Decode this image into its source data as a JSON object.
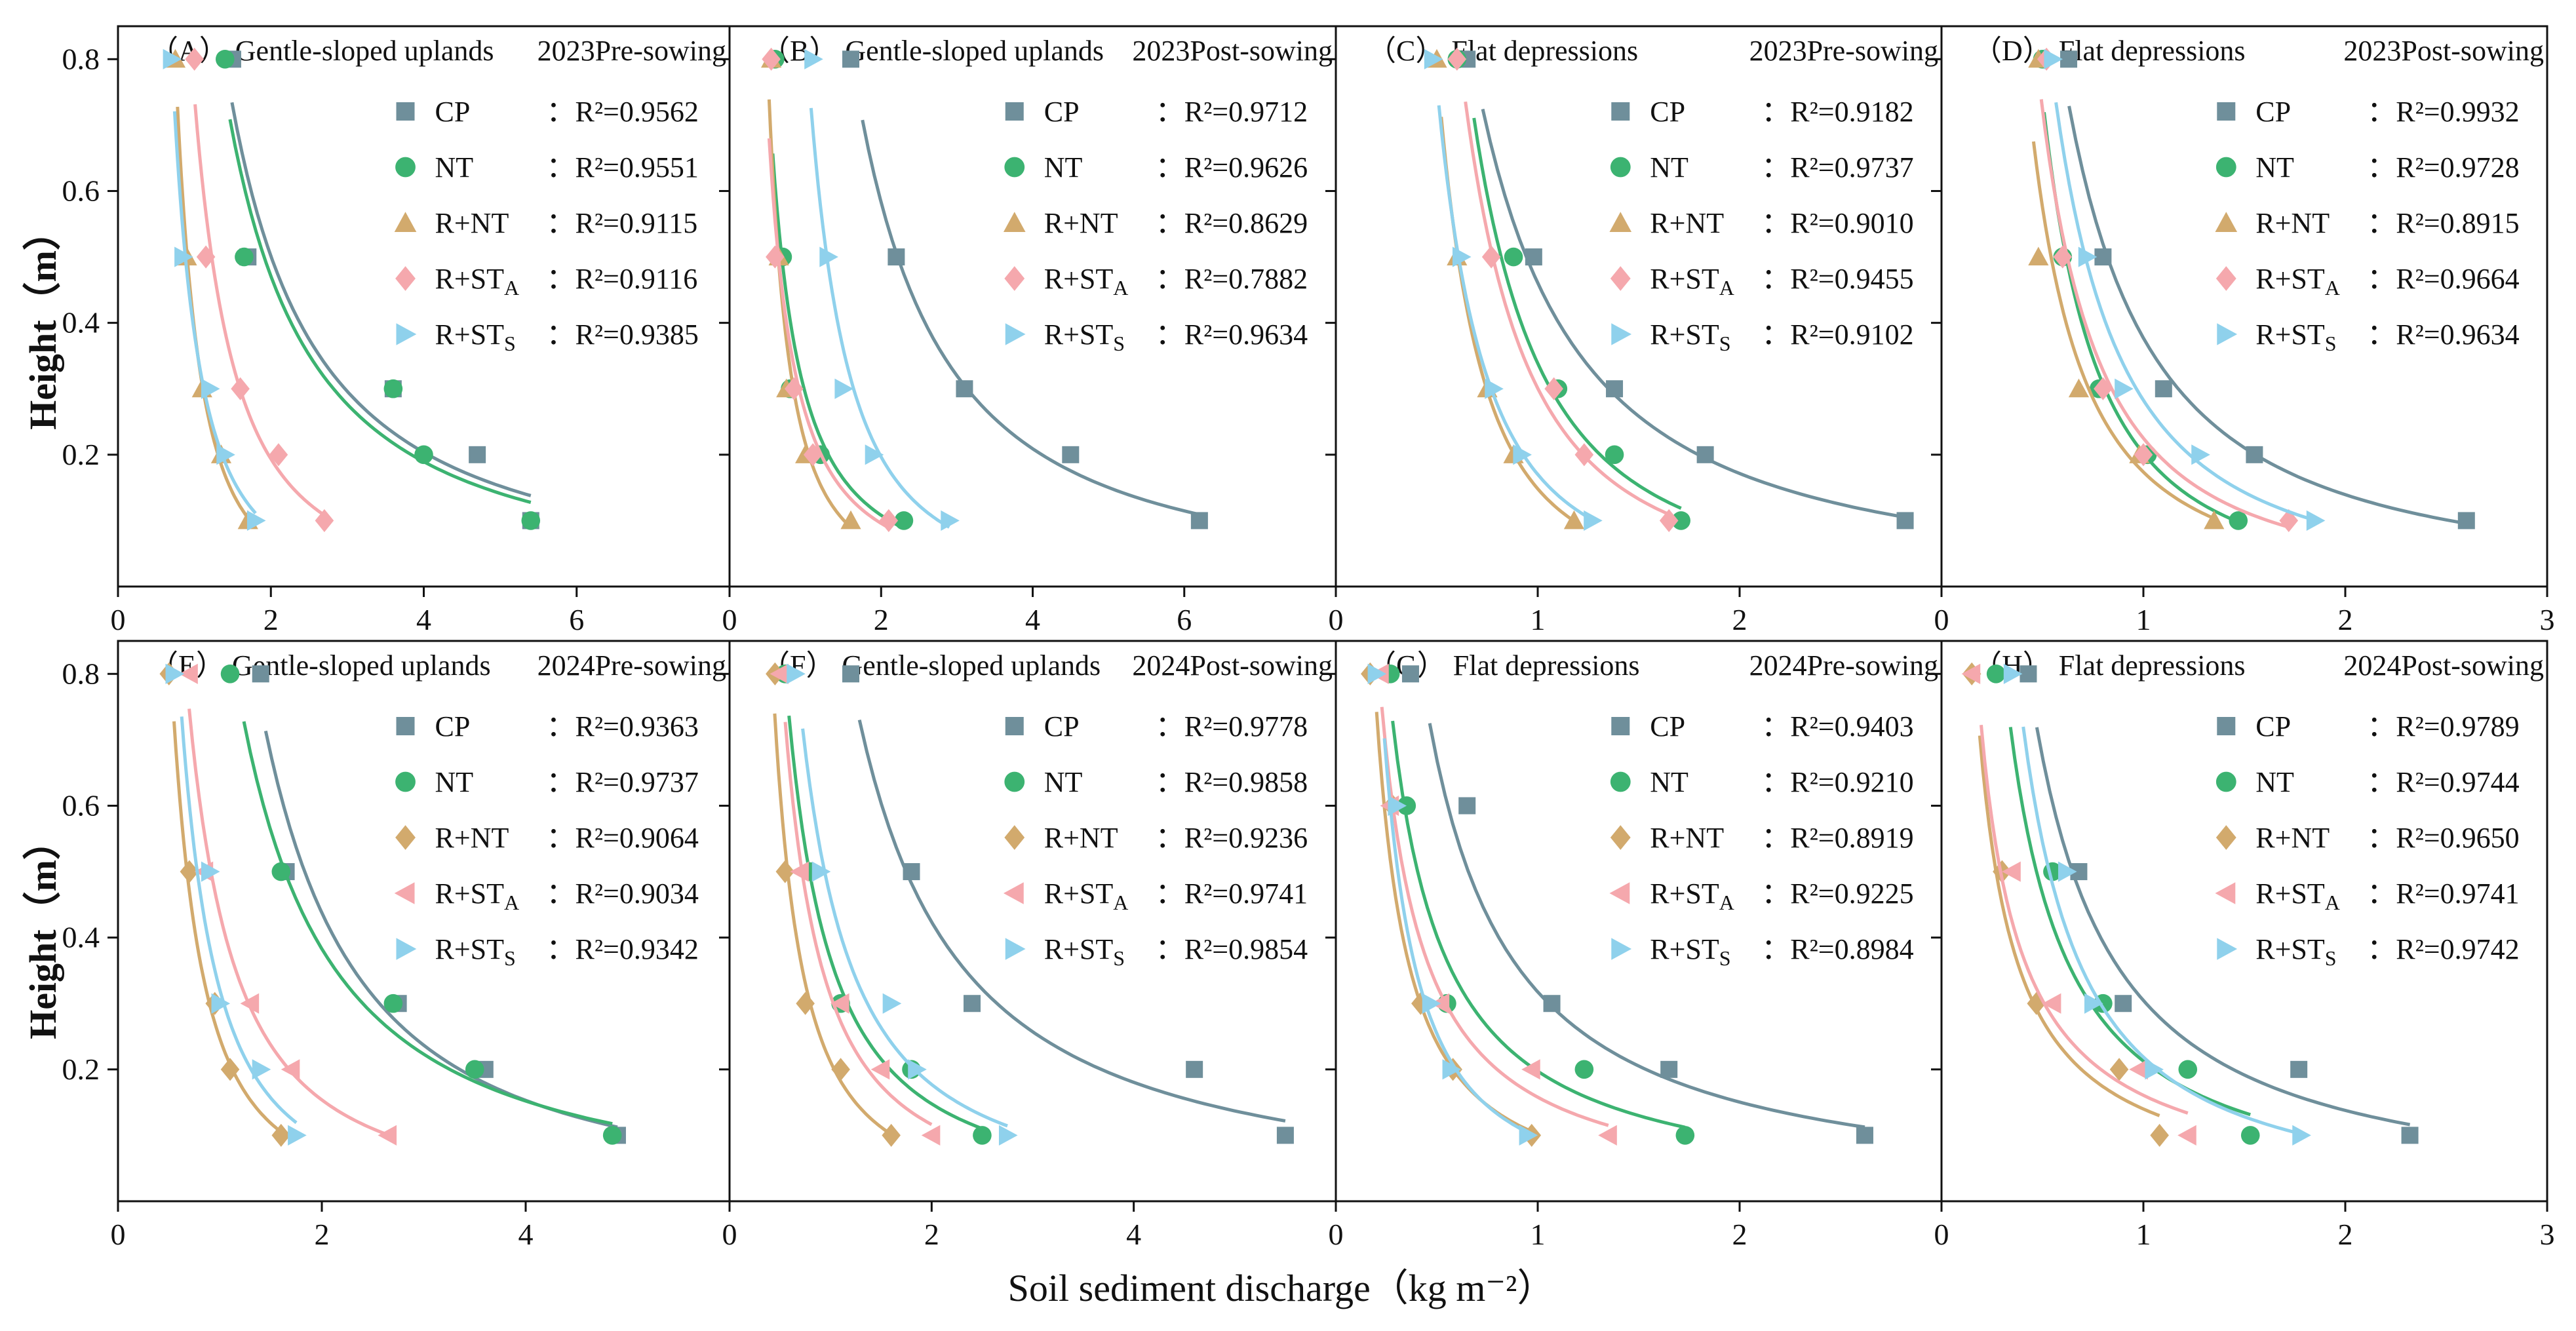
{
  "figure": {
    "ylabel": "Height（m）",
    "xlabel": "Soil sediment discharge（kg m⁻²）"
  },
  "colors": {
    "CP": "#6f8f9b",
    "NT": "#3cb371",
    "R+NT": "#d2aa6d",
    "R+STA": "#f5a8ad",
    "R+STS": "#8fd1ec",
    "highlight": "#00e5ff"
  },
  "chart_data": [
    {
      "type": "scatter",
      "id": "A",
      "panel_label": "（A）",
      "site": "Gentle-sloped uplands",
      "period": "2023Pre-sowing",
      "xlim": [
        0,
        8
      ],
      "ylim": [
        0,
        0.85
      ],
      "xticks": [
        "0",
        "2",
        "4",
        "6",
        ""
      ],
      "yticks": [
        "0.2",
        "0.4",
        "0.6",
        "0.8"
      ],
      "series": [
        {
          "key": "CP",
          "name": "CP",
          "marker": "square",
          "r2": "R²=0.9562",
          "x": [
            1.5,
            1.7,
            3.6,
            4.7,
            5.4
          ],
          "y": [
            0.8,
            0.5,
            0.3,
            0.2,
            0.1
          ]
        },
        {
          "key": "NT",
          "name": "NT",
          "marker": "circle",
          "r2": "R²=0.9551",
          "x": [
            1.4,
            1.65,
            3.6,
            4.0,
            5.4
          ],
          "y": [
            0.8,
            0.5,
            0.3,
            0.2,
            0.1
          ]
        },
        {
          "key": "R+NT",
          "name": "R+NT",
          "marker": "triangle-up",
          "r2": "R²=0.9115",
          "x": [
            0.75,
            0.9,
            1.1,
            1.35,
            1.7
          ],
          "y": [
            0.8,
            0.5,
            0.3,
            0.2,
            0.1
          ]
        },
        {
          "key": "R+STA",
          "name": "R+STA",
          "sub": "A",
          "marker": "diamond",
          "r2": "R²=0.9116",
          "x": [
            1.0,
            1.15,
            1.6,
            2.1,
            2.7
          ],
          "y": [
            0.8,
            0.5,
            0.3,
            0.2,
            0.1
          ]
        },
        {
          "key": "R+STS",
          "name": "R+STS",
          "sub": "S",
          "marker": "triangle-right",
          "r2": "R²=0.9385",
          "x": [
            0.7,
            0.85,
            1.2,
            1.4,
            1.8
          ],
          "y": [
            0.8,
            0.5,
            0.3,
            0.2,
            0.1
          ]
        }
      ]
    },
    {
      "type": "scatter",
      "id": "B",
      "panel_label": "（B）",
      "site": "Gentle-sloped uplands",
      "period": "2023Post-sowing",
      "xlim": [
        0,
        8
      ],
      "ylim": [
        0,
        0.85
      ],
      "xticks": [
        "0",
        "2",
        "4",
        "6",
        ""
      ],
      "yticks": [
        "0.2",
        "0.4",
        "0.6",
        "0.8"
      ],
      "series": [
        {
          "key": "CP",
          "name": "CP",
          "marker": "square",
          "r2": "R²=0.9712",
          "x": [
            1.6,
            2.2,
            3.1,
            4.5,
            6.2
          ],
          "y": [
            0.8,
            0.5,
            0.3,
            0.2,
            0.1
          ]
        },
        {
          "key": "NT",
          "name": "NT",
          "marker": "circle",
          "r2": "R²=0.9626",
          "x": [
            0.6,
            0.7,
            0.8,
            1.2,
            2.3
          ],
          "y": [
            0.8,
            0.5,
            0.3,
            0.2,
            0.1
          ]
        },
        {
          "key": "R+NT",
          "name": "R+NT",
          "marker": "triangle-up",
          "r2": "R²=0.8629",
          "x": [
            0.55,
            0.65,
            0.75,
            1.0,
            1.6
          ],
          "y": [
            0.8,
            0.5,
            0.3,
            0.2,
            0.1
          ]
        },
        {
          "key": "R+STA",
          "name": "R+STA",
          "sub": "A",
          "marker": "diamond",
          "r2": "R²=0.7882",
          "x": [
            0.55,
            0.6,
            0.85,
            1.1,
            2.1
          ],
          "y": [
            0.8,
            0.5,
            0.3,
            0.2,
            0.1
          ]
        },
        {
          "key": "R+STS",
          "name": "R+STS",
          "sub": "S",
          "marker": "triangle-right",
          "r2": "R²=0.9634",
          "x": [
            1.1,
            1.3,
            1.5,
            1.9,
            2.9
          ],
          "y": [
            0.8,
            0.5,
            0.3,
            0.2,
            0.1
          ]
        }
      ]
    },
    {
      "type": "scatter",
      "id": "C",
      "panel_label": "（C）",
      "site": "Flat depressions",
      "period": "2023Pre-sowing",
      "xlim": [
        0,
        3
      ],
      "ylim": [
        0,
        0.85
      ],
      "xticks": [
        "0",
        "1",
        "2",
        ""
      ],
      "yticks": [
        "0.2",
        "0.4",
        "0.6",
        "0.8"
      ],
      "series": [
        {
          "key": "CP",
          "name": "CP",
          "marker": "square",
          "r2": "R²=0.9182",
          "x": [
            0.65,
            0.98,
            1.38,
            1.83,
            2.82
          ],
          "y": [
            0.8,
            0.5,
            0.3,
            0.2,
            0.1
          ]
        },
        {
          "key": "NT",
          "name": "NT",
          "marker": "circle",
          "r2": "R²=0.9737",
          "x": [
            0.6,
            0.88,
            1.1,
            1.38,
            1.71
          ],
          "y": [
            0.8,
            0.5,
            0.3,
            0.2,
            0.1
          ]
        },
        {
          "key": "R+NT",
          "name": "R+NT",
          "marker": "triangle-up",
          "r2": "R²=0.9010",
          "x": [
            0.5,
            0.6,
            0.75,
            0.88,
            1.18
          ],
          "y": [
            0.8,
            0.5,
            0.3,
            0.2,
            0.1
          ]
        },
        {
          "key": "R+STA",
          "name": "R+STA",
          "sub": "A",
          "marker": "diamond",
          "r2": "R²=0.9455",
          "x": [
            0.6,
            0.77,
            1.08,
            1.23,
            1.65
          ],
          "y": [
            0.8,
            0.5,
            0.3,
            0.2,
            0.1
          ]
        },
        {
          "key": "R+STS",
          "name": "R+STS",
          "sub": "S",
          "marker": "triangle-right",
          "r2": "R²=0.9102",
          "x": [
            0.48,
            0.62,
            0.78,
            0.92,
            1.27
          ],
          "y": [
            0.8,
            0.5,
            0.3,
            0.2,
            0.1
          ]
        }
      ]
    },
    {
      "type": "scatter",
      "id": "D",
      "panel_label": "（D）",
      "site": "Flat depressions",
      "period": "2023Post-sowing",
      "xlim": [
        0,
        3
      ],
      "ylim": [
        0,
        0.85
      ],
      "xticks": [
        "0",
        "1",
        "2",
        "3"
      ],
      "yticks": [
        "0.2",
        "0.4",
        "0.6",
        "0.8"
      ],
      "series": [
        {
          "key": "CP",
          "name": "CP",
          "marker": "square",
          "r2": "R²=0.9932",
          "x": [
            0.63,
            0.8,
            1.1,
            1.55,
            2.6
          ],
          "y": [
            0.8,
            0.5,
            0.3,
            0.2,
            0.1
          ]
        },
        {
          "key": "NT",
          "name": "NT",
          "marker": "circle",
          "r2": "R²=0.9728",
          "x": [
            0.5,
            0.6,
            0.78,
            1.02,
            1.47
          ],
          "y": [
            0.8,
            0.5,
            0.3,
            0.2,
            0.1
          ]
        },
        {
          "key": "R+NT",
          "name": "R+NT",
          "marker": "triangle-up",
          "r2": "R²=0.8915",
          "x": [
            0.48,
            0.48,
            0.68,
            0.98,
            1.35
          ],
          "y": [
            0.8,
            0.5,
            0.3,
            0.2,
            0.1
          ]
        },
        {
          "key": "R+STA",
          "name": "R+STA",
          "sub": "A",
          "marker": "diamond",
          "r2": "R²=0.9664",
          "x": [
            0.52,
            0.6,
            0.8,
            1.0,
            1.72
          ],
          "y": [
            0.8,
            0.5,
            0.3,
            0.2,
            0.1
          ]
        },
        {
          "key": "R+STS",
          "name": "R+STS",
          "sub": "S",
          "marker": "triangle-right",
          "r2": "R²=0.9634",
          "x": [
            0.55,
            0.72,
            0.9,
            1.28,
            1.85
          ],
          "y": [
            0.8,
            0.5,
            0.3,
            0.2,
            0.1
          ]
        }
      ]
    },
    {
      "type": "scatter",
      "id": "E",
      "panel_label": "（E）",
      "site": "Gentle-sloped uplands",
      "period": "2024Pre-sowing",
      "xlim": [
        0,
        6
      ],
      "ylim": [
        0,
        0.85
      ],
      "xticks": [
        "0",
        "2",
        "4",
        ""
      ],
      "yticks": [
        "0.2",
        "0.4",
        "0.6",
        "0.8"
      ],
      "series": [
        {
          "key": "CP",
          "name": "CP",
          "marker": "square",
          "r2": "R²=0.9363",
          "x": [
            1.4,
            1.65,
            2.75,
            3.6,
            4.9
          ],
          "y": [
            0.8,
            0.5,
            0.3,
            0.2,
            0.1
          ]
        },
        {
          "key": "NT",
          "name": "NT",
          "marker": "circle",
          "r2": "R²=0.9737",
          "x": [
            1.1,
            1.6,
            2.7,
            3.5,
            4.85
          ],
          "y": [
            0.8,
            0.5,
            0.3,
            0.2,
            0.1
          ]
        },
        {
          "key": "R+NT",
          "name": "R+NT",
          "marker": "diamond",
          "r2": "R²=0.9064",
          "x": [
            0.5,
            0.7,
            0.95,
            1.1,
            1.6
          ],
          "y": [
            0.8,
            0.5,
            0.3,
            0.2,
            0.1
          ]
        },
        {
          "key": "R+STA",
          "name": "R+STA",
          "sub": "A",
          "marker": "triangle-left",
          "r2": "R²=0.9034",
          "x": [
            0.7,
            0.85,
            1.3,
            1.7,
            2.65
          ],
          "y": [
            0.8,
            0.5,
            0.3,
            0.2,
            0.1
          ]
        },
        {
          "key": "R+STS",
          "name": "R+STS",
          "sub": "S",
          "marker": "triangle-right",
          "r2": "R²=0.9342",
          "x": [
            0.55,
            0.9,
            1.0,
            1.4,
            1.75
          ],
          "y": [
            0.8,
            0.5,
            0.3,
            0.2,
            0.1
          ]
        }
      ]
    },
    {
      "type": "scatter",
      "id": "F",
      "panel_label": "（F）",
      "site": "Gentle-sloped uplands",
      "period": "2024Post-sowing",
      "xlim": [
        0,
        6
      ],
      "ylim": [
        0,
        0.85
      ],
      "xticks": [
        "0",
        "2",
        "4",
        ""
      ],
      "yticks": [
        "0.2",
        "0.4",
        "0.6",
        "0.8"
      ],
      "series": [
        {
          "key": "CP",
          "name": "CP",
          "marker": "square",
          "r2": "R²=0.9778",
          "x": [
            1.2,
            1.8,
            2.4,
            4.6,
            5.5
          ],
          "y": [
            0.8,
            0.5,
            0.3,
            0.2,
            0.1
          ]
        },
        {
          "key": "NT",
          "name": "NT",
          "marker": "circle",
          "r2": "R²=0.9858",
          "x": [
            0.55,
            0.8,
            1.1,
            1.8,
            2.5
          ],
          "y": [
            0.8,
            0.5,
            0.3,
            0.2,
            0.1
          ]
        },
        {
          "key": "R+NT",
          "name": "R+NT",
          "marker": "diamond",
          "r2": "R²=0.9236",
          "x": [
            0.45,
            0.55,
            0.75,
            1.1,
            1.6
          ],
          "y": [
            0.8,
            0.5,
            0.3,
            0.2,
            0.1
          ]
        },
        {
          "key": "R+STA",
          "name": "R+STA",
          "sub": "A",
          "marker": "triangle-left",
          "r2": "R²=0.9741",
          "x": [
            0.5,
            0.7,
            1.1,
            1.5,
            2.0
          ],
          "y": [
            0.8,
            0.5,
            0.3,
            0.2,
            0.1
          ]
        },
        {
          "key": "R+STS",
          "name": "R+STS",
          "sub": "S",
          "marker": "triangle-right",
          "r2": "R²=0.9854",
          "x": [
            0.65,
            0.9,
            1.6,
            1.85,
            2.75
          ],
          "y": [
            0.8,
            0.5,
            0.3,
            0.2,
            0.1
          ]
        }
      ]
    },
    {
      "type": "scatter",
      "id": "G",
      "panel_label": "（G）",
      "site": "Flat depressions",
      "period": "2024Pre-sowing",
      "xlim": [
        0,
        3
      ],
      "ylim": [
        0,
        0.85
      ],
      "xticks": [
        "0",
        "1",
        "2",
        ""
      ],
      "yticks": [
        "0.2",
        "0.4",
        "0.6",
        "0.8"
      ],
      "series": [
        {
          "key": "CP",
          "name": "CP",
          "marker": "square",
          "r2": "R²=0.9403",
          "x": [
            0.37,
            0.65,
            1.07,
            1.65,
            2.62
          ],
          "y": [
            0.8,
            0.6,
            0.3,
            0.2,
            0.1
          ]
        },
        {
          "key": "NT",
          "name": "NT",
          "marker": "circle",
          "r2": "R²=0.9210",
          "x": [
            0.27,
            0.35,
            0.55,
            1.23,
            1.73
          ],
          "y": [
            0.8,
            0.6,
            0.3,
            0.2,
            0.1
          ]
        },
        {
          "key": "R+NT",
          "name": "R+NT",
          "marker": "diamond",
          "r2": "R²=0.8919",
          "x": [
            0.17,
            0.28,
            0.42,
            0.58,
            0.97
          ],
          "y": [
            0.8,
            0.6,
            0.3,
            0.2,
            0.1
          ]
        },
        {
          "key": "R+STA",
          "name": "R+STA",
          "sub": "A",
          "marker": "triangle-left",
          "r2": "R²=0.9225",
          "x": [
            0.22,
            0.27,
            0.52,
            0.97,
            1.35
          ],
          "y": [
            0.8,
            0.6,
            0.3,
            0.2,
            0.1
          ]
        },
        {
          "key": "R+STS",
          "name": "R+STS",
          "sub": "S",
          "marker": "triangle-right",
          "r2": "R²=0.8984",
          "x": [
            0.2,
            0.3,
            0.47,
            0.57,
            0.95
          ],
          "y": [
            0.8,
            0.6,
            0.3,
            0.2,
            0.1
          ]
        }
      ]
    },
    {
      "type": "scatter",
      "id": "H",
      "panel_label": "（H）",
      "site": "Flat depressions",
      "period": "2024Post-sowing",
      "xlim": [
        0,
        3
      ],
      "ylim": [
        0,
        0.85
      ],
      "xticks": [
        "0",
        "1",
        "2",
        "3"
      ],
      "yticks": [
        "0.2",
        "0.4",
        "0.6",
        "0.8"
      ],
      "series": [
        {
          "key": "CP",
          "name": "CP",
          "marker": "square",
          "r2": "R²=0.9789",
          "x": [
            0.43,
            0.68,
            0.9,
            1.77,
            2.32
          ],
          "y": [
            0.8,
            0.5,
            0.3,
            0.2,
            0.1
          ]
        },
        {
          "key": "NT",
          "name": "NT",
          "marker": "circle",
          "r2": "R²=0.9744",
          "x": [
            0.27,
            0.55,
            0.8,
            1.22,
            1.53
          ],
          "y": [
            0.8,
            0.5,
            0.3,
            0.2,
            0.1
          ]
        },
        {
          "key": "R+NT",
          "name": "R+NT",
          "marker": "diamond",
          "r2": "R²=0.9650",
          "x": [
            0.15,
            0.3,
            0.47,
            0.88,
            1.08
          ],
          "y": [
            0.8,
            0.5,
            0.3,
            0.2,
            0.1
          ]
        },
        {
          "key": "R+STA",
          "name": "R+STA",
          "sub": "A",
          "marker": "triangle-left",
          "r2": "R²=0.9741",
          "x": [
            0.15,
            0.35,
            0.55,
            0.98,
            1.22
          ],
          "y": [
            0.8,
            0.5,
            0.3,
            0.2,
            0.1
          ]
        },
        {
          "key": "R+STS",
          "name": "R+STS",
          "sub": "S",
          "marker": "triangle-right",
          "r2": "R²=0.9742",
          "x": [
            0.35,
            0.62,
            0.75,
            1.05,
            1.78
          ],
          "y": [
            0.8,
            0.5,
            0.3,
            0.2,
            0.1
          ]
        }
      ]
    }
  ]
}
